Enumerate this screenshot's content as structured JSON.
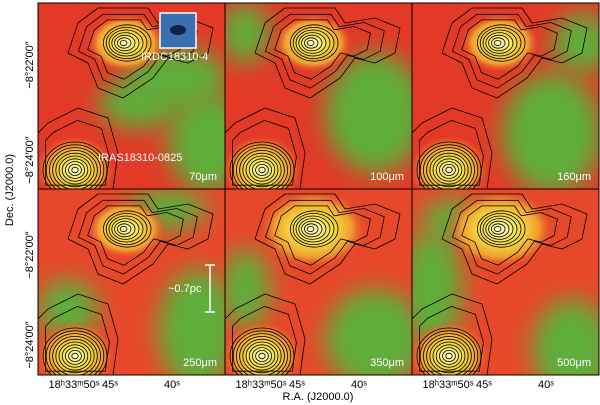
{
  "figure": {
    "panels": [
      {
        "label": "70μm"
      },
      {
        "label": "100μm"
      },
      {
        "label": "160μm"
      },
      {
        "label": "250μm"
      },
      {
        "label": "350μm"
      },
      {
        "label": "500μm"
      }
    ],
    "annotations": {
      "irdc": "IRDC18310-4",
      "iras": "IRAS18310-0825",
      "scale": "~0.7pc"
    },
    "y_axis": {
      "label": "Dec. (J2000.0)",
      "ticks": [
        "−8°22′00″",
        "−8°24′00″",
        "−8°22′00″",
        "−8°24′00″"
      ]
    },
    "x_axis": {
      "label": "R.A. (J2000.0)",
      "ticks": [
        "18ʰ33ᵐ50ˢ",
        "45ˢ",
        "40ˢ",
        "18ʰ33ᵐ50ˢ",
        "45ˢ",
        "40ˢ",
        "18ʰ33ᵐ50ˢ",
        "45ˢ",
        "40ˢ"
      ]
    }
  }
}
